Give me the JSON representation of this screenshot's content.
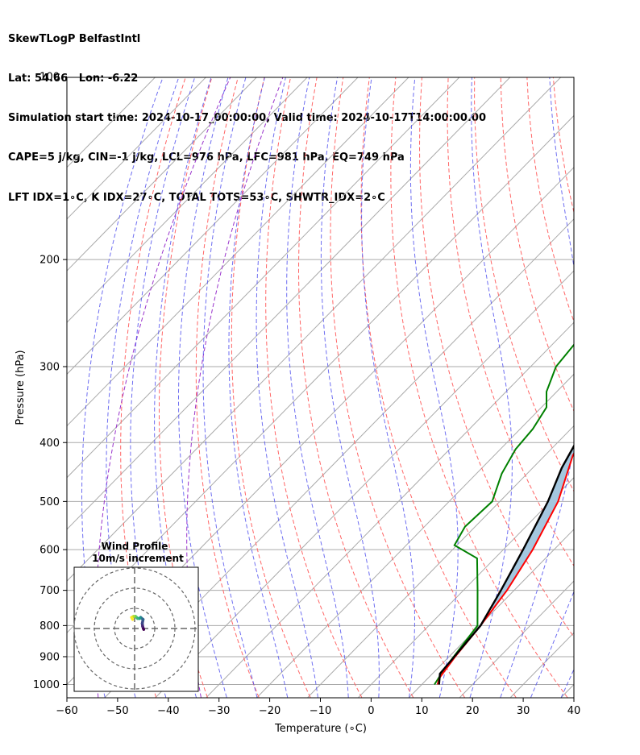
{
  "header": {
    "line1": "SkewTLogP BelfastIntl",
    "line2": "Lat: 54.66   Lon: -6.22",
    "line3": "Simulation start time: 2024-10-17_00:00:00, Valid time: 2024-10-17T14:00:00.00",
    "line4": "CAPE=5 j/kg, CIN=-1 j/kg, LCL=976 hPa, LFC=981 hPa, EQ=749 hPa",
    "line5": "LFT IDX=1∘C, K IDX=27∘C, TOTAL TOTS=53∘C, SHWTR_IDX=2∘C"
  },
  "chart_data": {
    "type": "skewt",
    "title": "SkewTLogP BelfastIntl",
    "xlabel": "Temperature (∘C)",
    "ylabel": "Pressure (hPa)",
    "xlim": [
      -60,
      40
    ],
    "ylim": [
      1050,
      100
    ],
    "yscale": "log",
    "xticks": [
      -60,
      -50,
      -40,
      -30,
      -20,
      -10,
      0,
      10,
      20,
      30,
      40
    ],
    "yticks": [
      1000,
      900,
      800,
      700,
      600,
      500,
      400,
      300,
      200,
      100
    ],
    "grid": true,
    "temperature": {
      "color": "#ff0000",
      "points": [
        [
          13.1,
          1000
        ],
        [
          12.2,
          975
        ],
        [
          11.2,
          900
        ],
        [
          10.2,
          800
        ],
        [
          8.6,
          700
        ],
        [
          5.8,
          600
        ],
        [
          1.5,
          500
        ],
        [
          -4.5,
          420
        ],
        [
          -6,
          390
        ],
        [
          -5,
          350
        ],
        [
          -3.7,
          300
        ],
        [
          -2.5,
          250
        ],
        [
          0.5,
          200
        ],
        [
          7.5,
          150
        ],
        [
          15,
          120
        ],
        [
          24,
          100
        ]
      ]
    },
    "dewpoint": {
      "color": "#008000",
      "points": [
        [
          12.5,
          1000
        ],
        [
          11.4,
          940
        ],
        [
          9.6,
          800
        ],
        [
          2.8,
          700
        ],
        [
          -3.5,
          620
        ],
        [
          -10.5,
          590
        ],
        [
          -12,
          550
        ],
        [
          -11.5,
          500
        ],
        [
          -15,
          450
        ],
        [
          -17,
          410
        ],
        [
          -17.5,
          380
        ],
        [
          -19,
          350
        ],
        [
          -22,
          330
        ],
        [
          -25,
          300
        ],
        [
          -26.5,
          250
        ],
        [
          -26.5,
          200
        ],
        [
          -24.5,
          170
        ],
        [
          -20,
          150
        ],
        [
          -10,
          120
        ],
        [
          -2,
          100
        ]
      ]
    },
    "parcel": {
      "color": "#000000",
      "points": [
        [
          13.4,
          1000
        ],
        [
          11.5,
          960
        ],
        [
          10.2,
          800
        ],
        [
          7.4,
          700
        ],
        [
          3.9,
          600
        ],
        [
          -0.5,
          500
        ],
        [
          -4.3,
          440
        ],
        [
          -6.4,
          400
        ],
        [
          -14.5,
          300
        ],
        [
          -20.5,
          250
        ],
        [
          -28,
          200
        ],
        [
          -32,
          175
        ],
        [
          -37,
          150
        ],
        [
          -41,
          130
        ],
        [
          -44.5,
          115
        ],
        [
          -47,
          100
        ]
      ]
    },
    "shading": {
      "color": "#a4c7df",
      "description": "area between parcel and temperature"
    },
    "wind_barbs": [
      {
        "p": 1000,
        "speed_kt": 10,
        "dir_deg": 240
      },
      {
        "p": 950,
        "speed_kt": 15,
        "dir_deg": 240
      },
      {
        "p": 900,
        "speed_kt": 15,
        "dir_deg": 240
      },
      {
        "p": 850,
        "speed_kt": 15,
        "dir_deg": 240
      },
      {
        "p": 800,
        "speed_kt": 15,
        "dir_deg": 240
      },
      {
        "p": 750,
        "speed_kt": 15,
        "dir_deg": 240
      },
      {
        "p": 650,
        "speed_kt": 15,
        "dir_deg": 240
      },
      {
        "p": 600,
        "speed_kt": 15,
        "dir_deg": 240
      },
      {
        "p": 500,
        "speed_kt": 15,
        "dir_deg": 240
      },
      {
        "p": 420,
        "speed_kt": 15,
        "dir_deg": 240
      },
      {
        "p": 360,
        "speed_kt": 20,
        "dir_deg": 260
      },
      {
        "p": 300,
        "speed_kt": 20,
        "dir_deg": 275
      },
      {
        "p": 270,
        "speed_kt": 20,
        "dir_deg": 275
      },
      {
        "p": 240,
        "speed_kt": 20,
        "dir_deg": 270
      },
      {
        "p": 200,
        "speed_kt": 20,
        "dir_deg": 265
      },
      {
        "p": 175,
        "speed_kt": 20,
        "dir_deg": 255
      },
      {
        "p": 150,
        "speed_kt": 20,
        "dir_deg": 245
      },
      {
        "p": 135,
        "speed_kt": 20,
        "dir_deg": 240
      },
      {
        "p": 120,
        "speed_kt": 20,
        "dir_deg": 240
      },
      {
        "p": 110,
        "speed_kt": 20,
        "dir_deg": 240
      }
    ],
    "hodograph": {
      "title": "Wind Profile",
      "subtitle": "10m/s increment",
      "rings_ms": [
        10,
        20,
        30
      ],
      "colormap": "viridis",
      "u": [
        4.5,
        4.0,
        3.8,
        4.2,
        3.0,
        2.5,
        1.5,
        0.5,
        -0.5,
        -1.5,
        -1.0
      ],
      "v": [
        -0.5,
        1.0,
        2.5,
        4.5,
        5.5,
        5.0,
        5.0,
        6.0,
        6.0,
        5.5,
        4.5
      ]
    }
  }
}
